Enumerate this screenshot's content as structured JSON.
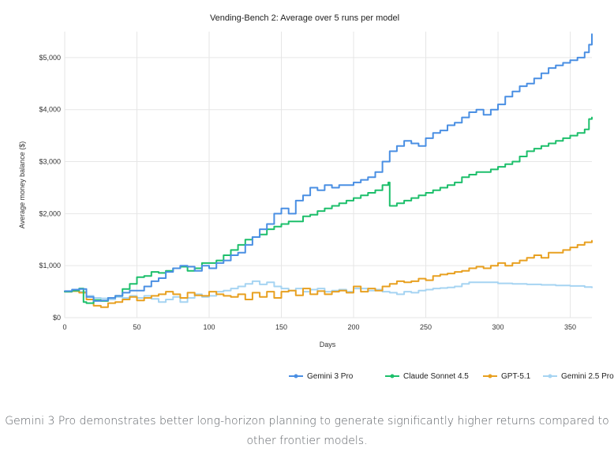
{
  "caption": "Gemini 3 Pro demonstrates better long-horizon planning to generate significantly higher returns compared to other frontier models.",
  "chart_data": {
    "type": "line",
    "title": "Vending-Bench 2: Average over 5 runs per model",
    "xlabel": "Days",
    "ylabel": "Average money balance ($)",
    "xlim": [
      0,
      365
    ],
    "ylim": [
      0,
      5500
    ],
    "xticks": [
      0,
      50,
      100,
      150,
      200,
      250,
      300,
      350
    ],
    "xtick_labels": [
      "0",
      "50",
      "100",
      "150",
      "200",
      "250",
      "300",
      "350"
    ],
    "yticks": [
      0,
      1000,
      2000,
      3000,
      4000,
      5000
    ],
    "ytick_labels": [
      "$0",
      "$1,000",
      "$2,000",
      "$3,000",
      "$4,000",
      "$5,000"
    ],
    "grid": true,
    "legend_position": "bottom-right",
    "series": [
      {
        "name": "Gemini 3 Pro",
        "color": "#4a8fe3",
        "x": [
          0,
          5,
          10,
          15,
          20,
          25,
          30,
          35,
          40,
          45,
          50,
          55,
          60,
          65,
          70,
          75,
          80,
          85,
          90,
          95,
          100,
          105,
          110,
          115,
          120,
          125,
          130,
          135,
          140,
          145,
          150,
          155,
          160,
          165,
          170,
          175,
          180,
          185,
          190,
          195,
          200,
          205,
          210,
          215,
          220,
          225,
          230,
          235,
          240,
          245,
          250,
          255,
          260,
          265,
          270,
          275,
          280,
          285,
          290,
          295,
          300,
          305,
          310,
          315,
          320,
          325,
          330,
          335,
          340,
          345,
          350,
          355,
          360,
          363,
          365
        ],
        "y": [
          510,
          540,
          550,
          400,
          320,
          330,
          380,
          420,
          480,
          520,
          520,
          600,
          700,
          760,
          880,
          950,
          1000,
          980,
          900,
          1000,
          950,
          1050,
          1100,
          1200,
          1250,
          1400,
          1550,
          1700,
          1800,
          2000,
          2100,
          2000,
          2250,
          2350,
          2500,
          2450,
          2550,
          2500,
          2550,
          2550,
          2600,
          2650,
          2700,
          2800,
          3000,
          3200,
          3300,
          3400,
          3350,
          3300,
          3450,
          3550,
          3600,
          3700,
          3750,
          3850,
          3950,
          4000,
          3900,
          4000,
          4100,
          4250,
          4350,
          4450,
          4500,
          4600,
          4700,
          4800,
          4850,
          4900,
          4950,
          5000,
          5100,
          5250,
          5450
        ]
      },
      {
        "name": "Claude Sonnet 4.5",
        "color": "#1dbf6b",
        "x": [
          0,
          5,
          10,
          13,
          15,
          20,
          25,
          30,
          35,
          40,
          45,
          50,
          55,
          60,
          65,
          70,
          75,
          80,
          85,
          90,
          95,
          100,
          105,
          110,
          115,
          120,
          125,
          130,
          135,
          140,
          145,
          150,
          155,
          160,
          165,
          170,
          175,
          180,
          185,
          190,
          195,
          200,
          205,
          210,
          215,
          220,
          224,
          225,
          230,
          235,
          240,
          245,
          250,
          255,
          260,
          265,
          270,
          275,
          280,
          285,
          290,
          295,
          300,
          305,
          310,
          315,
          320,
          325,
          330,
          335,
          340,
          345,
          350,
          355,
          360,
          363,
          365
        ],
        "y": [
          500,
          520,
          560,
          300,
          280,
          340,
          320,
          380,
          420,
          550,
          650,
          780,
          800,
          880,
          860,
          900,
          950,
          980,
          900,
          950,
          1050,
          1050,
          1100,
          1200,
          1300,
          1400,
          1500,
          1550,
          1600,
          1700,
          1750,
          1800,
          1850,
          1850,
          1950,
          1980,
          2050,
          2100,
          2150,
          2200,
          2250,
          2300,
          2350,
          2400,
          2450,
          2550,
          2600,
          2150,
          2200,
          2250,
          2300,
          2350,
          2400,
          2450,
          2500,
          2550,
          2600,
          2700,
          2750,
          2800,
          2800,
          2850,
          2900,
          2950,
          3000,
          3100,
          3200,
          3250,
          3300,
          3350,
          3400,
          3450,
          3500,
          3550,
          3620,
          3820,
          3850
        ]
      },
      {
        "name": "GPT-5.1",
        "color": "#e8a020",
        "x": [
          0,
          5,
          10,
          15,
          20,
          25,
          30,
          35,
          40,
          45,
          50,
          55,
          60,
          65,
          70,
          75,
          80,
          85,
          90,
          95,
          100,
          105,
          110,
          115,
          120,
          125,
          130,
          135,
          140,
          145,
          150,
          155,
          160,
          165,
          170,
          175,
          180,
          185,
          190,
          195,
          200,
          205,
          210,
          215,
          220,
          225,
          230,
          235,
          240,
          245,
          250,
          255,
          260,
          265,
          270,
          275,
          280,
          285,
          290,
          295,
          300,
          305,
          310,
          315,
          320,
          325,
          330,
          335,
          340,
          345,
          350,
          355,
          360,
          365
        ],
        "y": [
          500,
          510,
          480,
          350,
          230,
          200,
          280,
          300,
          350,
          400,
          330,
          380,
          420,
          450,
          500,
          450,
          380,
          480,
          430,
          420,
          500,
          450,
          420,
          400,
          450,
          350,
          480,
          400,
          500,
          380,
          500,
          520,
          430,
          560,
          450,
          510,
          450,
          500,
          520,
          480,
          600,
          500,
          560,
          520,
          600,
          650,
          700,
          680,
          700,
          750,
          720,
          800,
          830,
          850,
          880,
          900,
          950,
          980,
          950,
          1000,
          1050,
          1000,
          1050,
          1100,
          1150,
          1200,
          1150,
          1250,
          1250,
          1300,
          1350,
          1400,
          1450,
          1480
        ]
      },
      {
        "name": "Gemini 2.5 Pro",
        "color": "#a6d4f2",
        "x": [
          0,
          5,
          10,
          15,
          20,
          25,
          30,
          35,
          40,
          45,
          50,
          55,
          60,
          65,
          70,
          75,
          80,
          85,
          90,
          95,
          100,
          105,
          110,
          115,
          120,
          125,
          130,
          135,
          140,
          145,
          150,
          155,
          160,
          165,
          170,
          175,
          180,
          185,
          190,
          195,
          200,
          205,
          210,
          215,
          220,
          225,
          230,
          235,
          240,
          245,
          250,
          255,
          260,
          265,
          270,
          275,
          280,
          290,
          300,
          310,
          320,
          330,
          340,
          350,
          360,
          365
        ],
        "y": [
          500,
          510,
          500,
          420,
          380,
          370,
          350,
          400,
          380,
          420,
          380,
          420,
          360,
          300,
          350,
          400,
          300,
          380,
          450,
          400,
          420,
          500,
          520,
          560,
          600,
          650,
          700,
          640,
          680,
          600,
          560,
          520,
          560,
          500,
          540,
          560,
          500,
          520,
          540,
          500,
          560,
          560,
          520,
          540,
          500,
          480,
          450,
          500,
          480,
          520,
          540,
          560,
          570,
          580,
          600,
          650,
          680,
          680,
          660,
          650,
          640,
          630,
          620,
          610,
          590,
          580
        ]
      }
    ]
  }
}
